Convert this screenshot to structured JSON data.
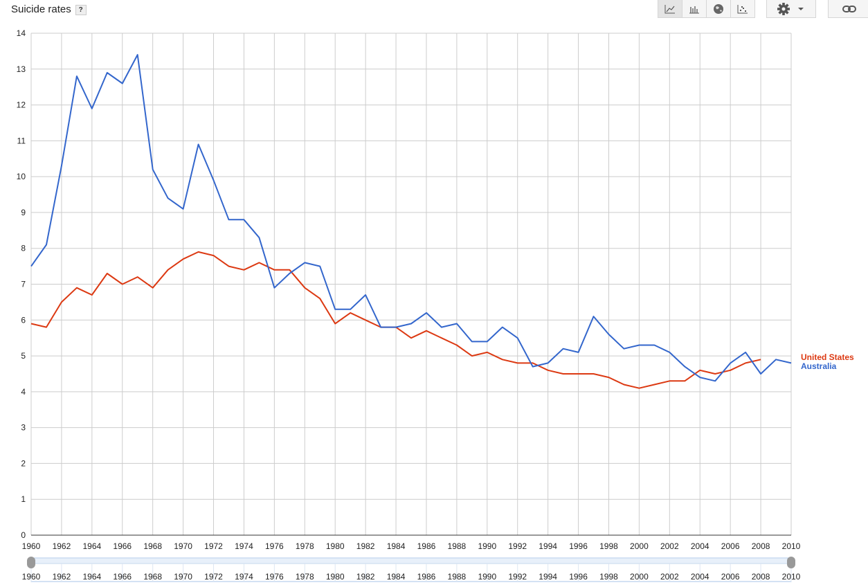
{
  "header": {
    "title": "Suicide rates",
    "help": "?"
  },
  "toolbar": {
    "chart_types": [
      {
        "icon": "line-chart-icon",
        "active": true
      },
      {
        "icon": "bar-chart-icon",
        "active": false
      },
      {
        "icon": "globe-icon",
        "active": false
      },
      {
        "icon": "scatter-chart-icon",
        "active": false
      }
    ],
    "settings_icon": "gear-icon",
    "dropdown_icon": "caret-down-icon",
    "link_icon": "link-icon"
  },
  "chart_data": {
    "type": "line",
    "title": "Suicide rates",
    "xlabel": "",
    "ylabel": "",
    "xlim": [
      1960,
      2010
    ],
    "ylim": [
      0,
      14
    ],
    "x_ticks": [
      1960,
      1962,
      1964,
      1966,
      1968,
      1970,
      1972,
      1974,
      1976,
      1978,
      1980,
      1982,
      1984,
      1986,
      1988,
      1990,
      1992,
      1994,
      1996,
      1998,
      2000,
      2002,
      2004,
      2006,
      2008,
      2010
    ],
    "y_ticks": [
      0,
      1,
      2,
      3,
      4,
      5,
      6,
      7,
      8,
      9,
      10,
      11,
      12,
      13,
      14
    ],
    "grid": true,
    "legend_placement": "right (end-of-line labels)",
    "series": [
      {
        "name": "United States",
        "color": "#dc3912",
        "x": [
          1960,
          1961,
          1962,
          1963,
          1964,
          1965,
          1966,
          1967,
          1968,
          1969,
          1970,
          1971,
          1972,
          1973,
          1974,
          1975,
          1976,
          1977,
          1978,
          1979,
          1980,
          1981,
          1982,
          1983,
          1984,
          1985,
          1986,
          1987,
          1988,
          1989,
          1990,
          1991,
          1992,
          1993,
          1994,
          1995,
          1996,
          1997,
          1998,
          1999,
          2000,
          2001,
          2002,
          2003,
          2004,
          2005,
          2006,
          2007,
          2008
        ],
        "values": [
          5.9,
          5.8,
          6.5,
          6.9,
          6.7,
          7.3,
          7.0,
          7.2,
          6.9,
          7.4,
          7.7,
          7.9,
          7.8,
          7.5,
          7.4,
          7.6,
          7.4,
          7.4,
          6.9,
          6.6,
          5.9,
          6.2,
          6.0,
          5.8,
          5.8,
          5.5,
          5.7,
          5.5,
          5.3,
          5.0,
          5.1,
          4.9,
          4.8,
          4.8,
          4.6,
          4.5,
          4.5,
          4.5,
          4.4,
          4.2,
          4.1,
          4.2,
          4.3,
          4.3,
          4.6,
          4.5,
          4.6,
          4.8,
          4.9
        ]
      },
      {
        "name": "Australia",
        "color": "#3366cc",
        "x": [
          1960,
          1961,
          1962,
          1963,
          1964,
          1965,
          1966,
          1967,
          1968,
          1969,
          1970,
          1971,
          1972,
          1973,
          1974,
          1975,
          1976,
          1977,
          1978,
          1979,
          1980,
          1981,
          1982,
          1983,
          1984,
          1985,
          1986,
          1987,
          1988,
          1989,
          1990,
          1991,
          1992,
          1993,
          1994,
          1995,
          1996,
          1997,
          1998,
          1999,
          2000,
          2001,
          2002,
          2003,
          2004,
          2005,
          2006,
          2007,
          2008,
          2009,
          2010
        ],
        "values": [
          7.5,
          8.1,
          10.3,
          12.8,
          11.9,
          12.9,
          12.6,
          13.4,
          10.2,
          9.4,
          9.1,
          10.9,
          9.9,
          8.8,
          8.8,
          8.3,
          6.9,
          7.3,
          7.6,
          7.5,
          6.3,
          6.3,
          6.7,
          5.8,
          5.8,
          5.9,
          6.2,
          5.8,
          5.9,
          5.4,
          5.4,
          5.8,
          5.5,
          4.7,
          4.8,
          5.2,
          5.1,
          6.1,
          5.6,
          5.2,
          5.3,
          5.3,
          5.1,
          4.7,
          4.4,
          4.3,
          4.8,
          5.1,
          4.5,
          4.9,
          4.8
        ]
      }
    ],
    "range_selector": {
      "start": 1960,
      "end": 2010,
      "ticks": [
        1960,
        1962,
        1964,
        1966,
        1968,
        1970,
        1972,
        1974,
        1976,
        1978,
        1980,
        1982,
        1984,
        1986,
        1988,
        1990,
        1992,
        1994,
        1996,
        1998,
        2000,
        2002,
        2004,
        2006,
        2008,
        2010
      ]
    }
  }
}
